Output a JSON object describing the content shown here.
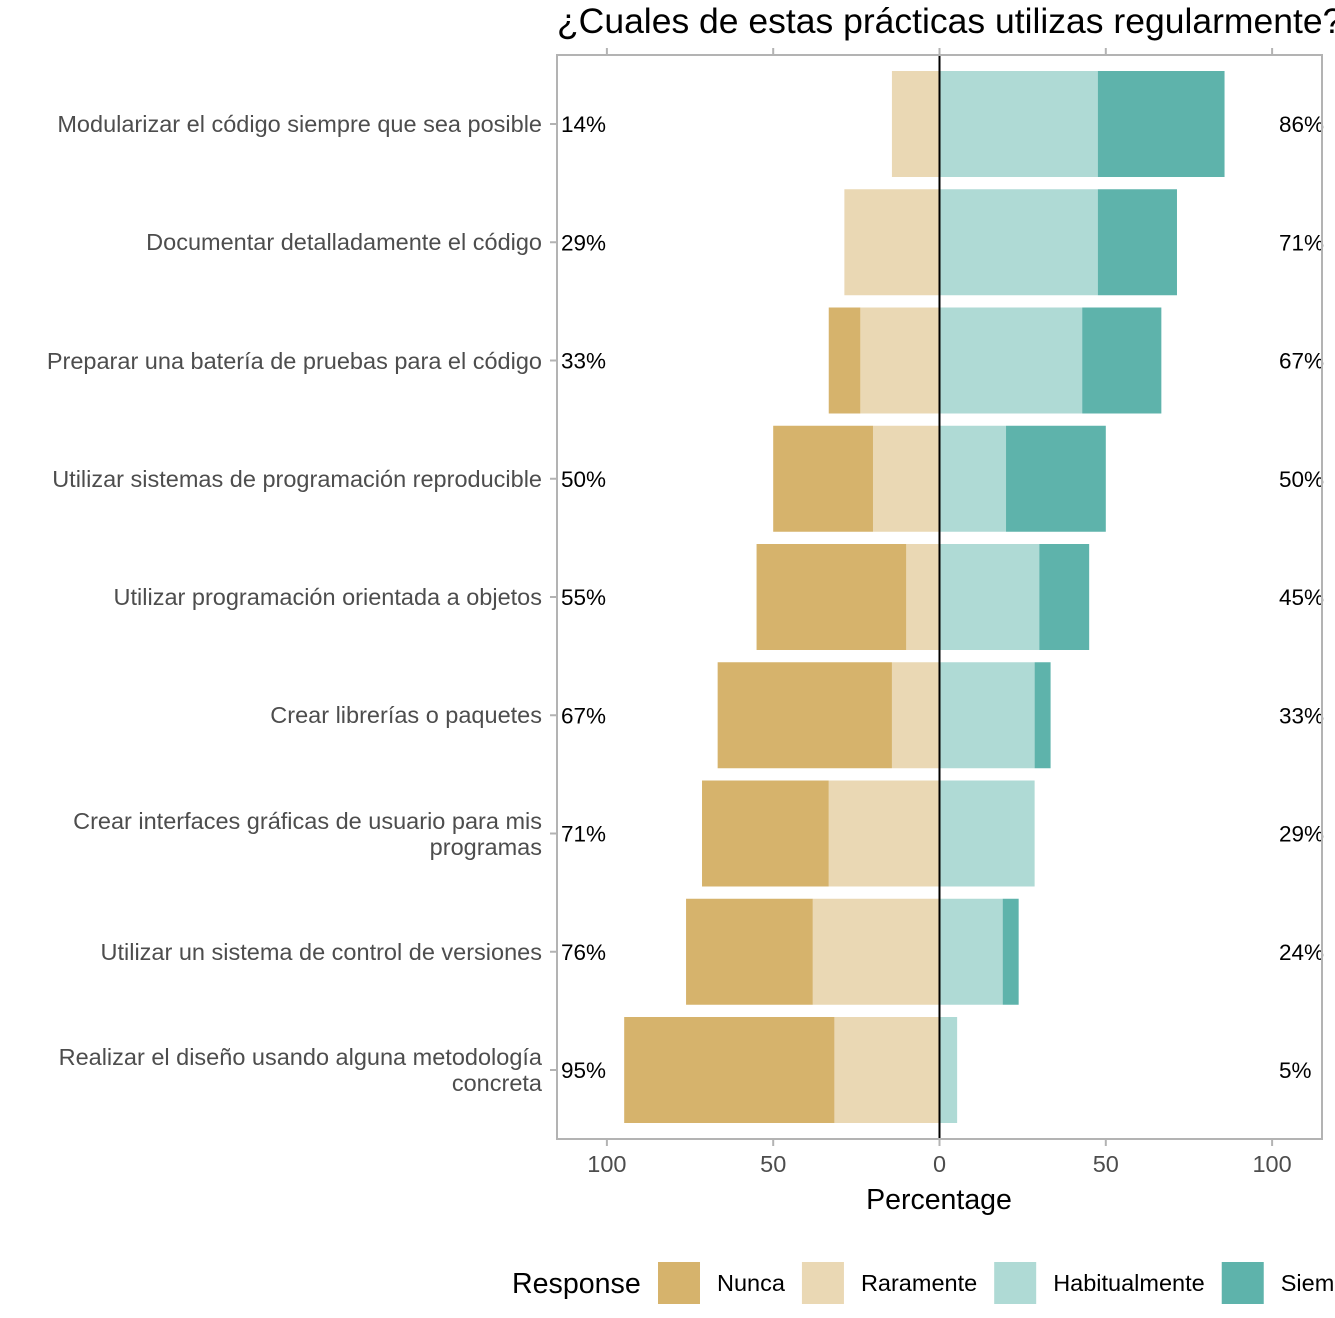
{
  "chart_data": {
    "type": "bar",
    "orientation": "horizontal",
    "style": "diverging stacked",
    "title": "¿Cuales de estas prácticas utilizas regularmente?",
    "xlabel": "Percentage",
    "ylabel": "",
    "xlim": [
      -115,
      115
    ],
    "x_ticks": [
      -100,
      -50,
      0,
      50,
      100
    ],
    "x_tick_labels": [
      "100",
      "50",
      "0",
      "50",
      "100"
    ],
    "grid": false,
    "zero_line": true,
    "categories": [
      "Modularizar el código siempre que sea posible",
      "Documentar detalladamente el código",
      "Preparar una batería de pruebas para el código",
      "Utilizar sistemas de programación reproducible",
      "Utilizar programación orientada a objetos",
      "Crear librerías o paquetes",
      "Crear interfaces gráficas de usuario para mis programas",
      "Utilizar un sistema de control de versiones",
      "Realizar el diseño usando alguna metodología concreta"
    ],
    "series": [
      {
        "name": "Nunca",
        "side": "left",
        "color": "#D6B36C",
        "values": [
          0,
          0,
          9.5,
          30,
          45,
          52.4,
          38.1,
          38.1,
          63.2
        ]
      },
      {
        "name": "Raramente",
        "side": "left",
        "color": "#EAD8B4",
        "values": [
          14.3,
          28.6,
          23.8,
          20,
          10,
          14.3,
          33.3,
          38.1,
          31.6
        ]
      },
      {
        "name": "Habitualmente",
        "side": "right",
        "color": "#AFDAD5",
        "values": [
          47.6,
          47.6,
          42.9,
          20,
          30,
          28.6,
          28.6,
          19.0,
          5.3
        ]
      },
      {
        "name": "Siempre",
        "side": "right",
        "color": "#5EB3AB",
        "values": [
          38.1,
          23.8,
          23.8,
          30,
          15,
          4.8,
          0,
          4.8,
          0
        ]
      }
    ],
    "low_labels": [
      "14%",
      "29%",
      "33%",
      "50%",
      "55%",
      "67%",
      "71%",
      "76%",
      "95%"
    ],
    "high_labels": [
      "86%",
      "71%",
      "67%",
      "50%",
      "45%",
      "33%",
      "29%",
      "24%",
      "5%"
    ],
    "legend": {
      "title": "Response",
      "position": "bottom"
    }
  }
}
